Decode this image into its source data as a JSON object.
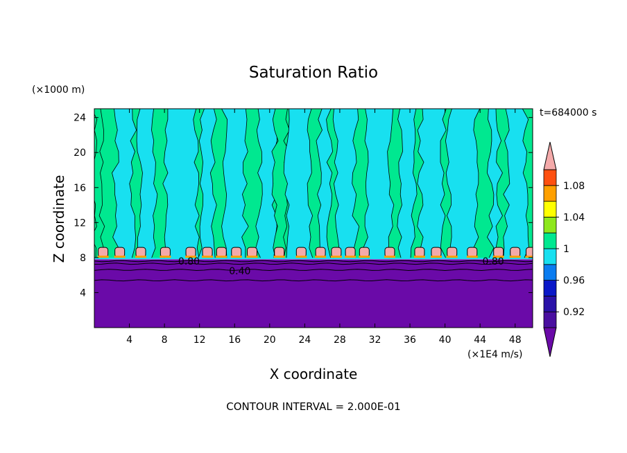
{
  "chart_data": {
    "type": "heatmap",
    "title": "Saturation Ratio",
    "xlabel": "X coordinate",
    "ylabel": "Z coordinate",
    "x_units": "(×1E4 m/s)",
    "y_units": "(×1000 m)",
    "time_label": "t=684000 s",
    "footer": "CONTOUR INTERVAL = 2.000E-01",
    "xlim": [
      0,
      50
    ],
    "ylim": [
      0,
      25
    ],
    "x_ticks": [
      "4",
      "8",
      "12",
      "16",
      "20",
      "24",
      "28",
      "32",
      "36",
      "40",
      "44",
      "48"
    ],
    "y_ticks": [
      "4",
      "8",
      "12",
      "16",
      "20",
      "24"
    ],
    "x_tick_values": [
      4,
      8,
      12,
      16,
      20,
      24,
      28,
      32,
      36,
      40,
      44,
      48
    ],
    "y_tick_values": [
      4,
      8,
      12,
      16,
      20,
      24
    ],
    "legend": {
      "levels": [
        0.9,
        0.92,
        0.94,
        0.96,
        0.98,
        1.0,
        1.02,
        1.04,
        1.06,
        1.08,
        1.1
      ],
      "labels": [
        "0.92",
        "0.96",
        "1",
        "1.04",
        "1.08"
      ],
      "label_values": [
        0.92,
        0.96,
        1.0,
        1.04,
        1.08
      ],
      "colors": [
        "#4a0fa0",
        "#2a12a8",
        "#0a18c8",
        "#0a7cf0",
        "#18e0f0",
        "#00e890",
        "#8ee81c",
        "#ffff00",
        "#ffa000",
        "#ff5010",
        "#f02828",
        "#f4aaaa"
      ],
      "under_color": "#6a0aa8",
      "over_color": "#f4aaaa"
    },
    "contour_labels": [
      {
        "text": "0.80",
        "x": 10.8,
        "y": 7.6
      },
      {
        "text": "0.40",
        "x": 16.6,
        "y": 6.5
      },
      {
        "text": "0.80",
        "x": 45.5,
        "y": 7.6
      }
    ],
    "regions": {
      "dry_layer_top": 7.8,
      "cloud_base": 7.9,
      "background_value": 1.01,
      "columns": [
        {
          "x0": 0.0,
          "x1": 0.8,
          "value": 1.01
        },
        {
          "x0": 2.4,
          "x1": 4.4,
          "value": 0.99
        },
        {
          "x0": 5.2,
          "x1": 6.8,
          "value": 0.99
        },
        {
          "x0": 8.2,
          "x1": 11.6,
          "value": 0.99
        },
        {
          "x0": 12.2,
          "x1": 13.6,
          "value": 0.99
        },
        {
          "x0": 14.8,
          "x1": 17.2,
          "value": 0.99
        },
        {
          "x0": 18.8,
          "x1": 20.6,
          "value": 0.99
        },
        {
          "x0": 20.6,
          "x1": 21.9,
          "value": 1.01
        },
        {
          "x0": 22.0,
          "x1": 24.6,
          "value": 0.99
        },
        {
          "x0": 25.6,
          "x1": 26.8,
          "value": 0.99
        },
        {
          "x0": 27.6,
          "x1": 29.8,
          "value": 0.99
        },
        {
          "x0": 31.0,
          "x1": 33.8,
          "value": 0.99
        },
        {
          "x0": 34.8,
          "x1": 36.4,
          "value": 0.99
        },
        {
          "x0": 37.2,
          "x1": 39.8,
          "value": 0.99
        },
        {
          "x0": 40.4,
          "x1": 43.6,
          "value": 0.99
        },
        {
          "x0": 45.2,
          "x1": 46.2,
          "value": 0.99
        },
        {
          "x0": 47.0,
          "x1": 49.2,
          "value": 0.99
        }
      ],
      "cloud_cells": [
        1.0,
        2.9,
        5.3,
        8.1,
        11.0,
        12.9,
        14.5,
        16.2,
        18.0,
        21.1,
        23.6,
        25.8,
        27.6,
        29.2,
        30.8,
        33.7,
        37.1,
        39.0,
        40.8,
        43.1,
        46.1,
        48.0,
        49.8
      ]
    }
  }
}
